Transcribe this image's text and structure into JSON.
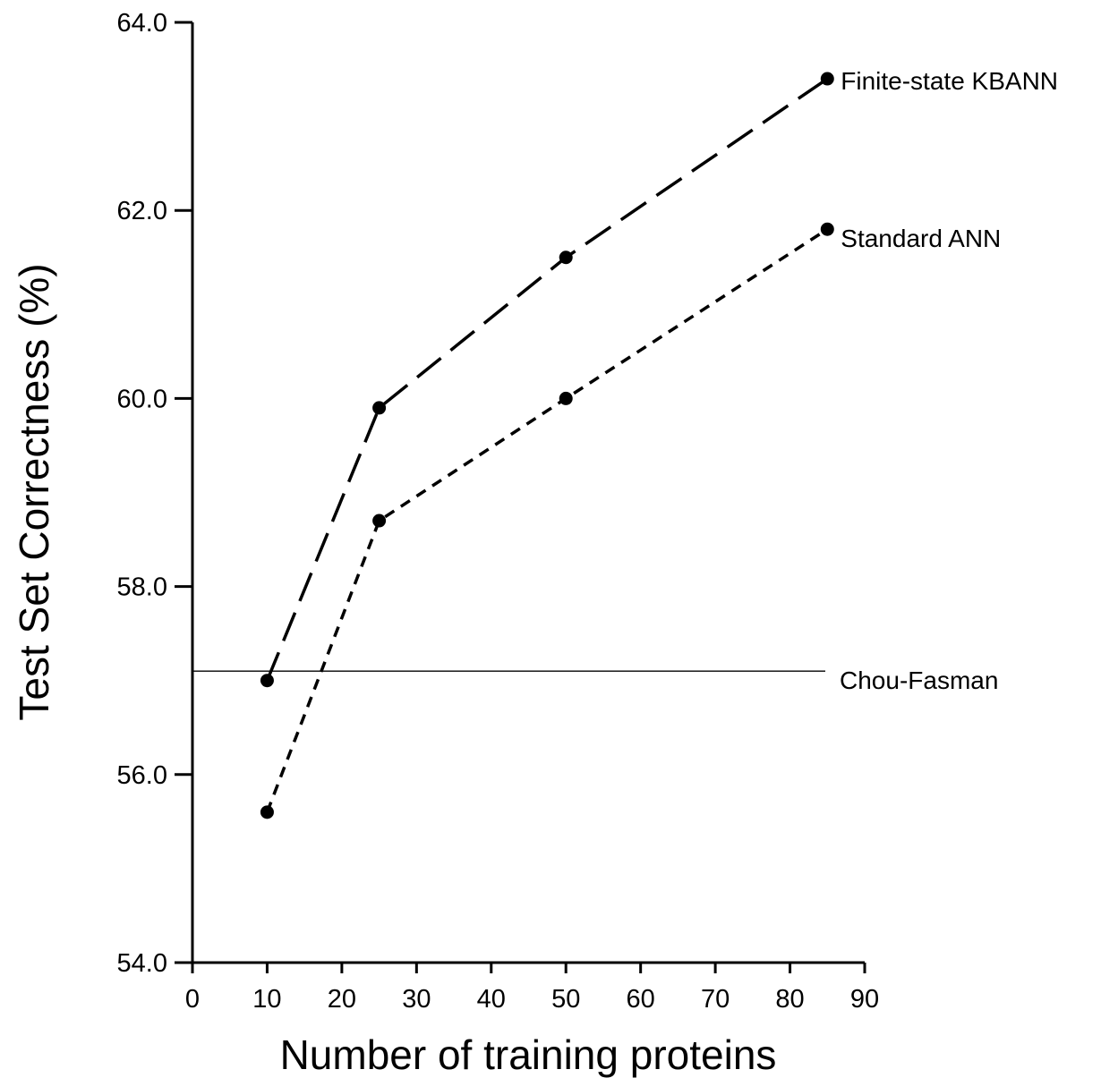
{
  "chart_data": {
    "type": "line",
    "xlabel": "Number of training proteins",
    "ylabel": "Test Set Correctness (%)",
    "xlim": [
      0,
      90
    ],
    "ylim": [
      54.0,
      64.0
    ],
    "x_ticks": [
      "0",
      "10",
      "20",
      "30",
      "40",
      "50",
      "60",
      "70",
      "80",
      "90"
    ],
    "y_ticks": [
      "54.0",
      "56.0",
      "58.0",
      "60.0",
      "62.0",
      "64.0"
    ],
    "grid": false,
    "legend": "none",
    "x": [
      10,
      25,
      50,
      85
    ],
    "series": [
      {
        "name": "Finite-state KBANN",
        "values": [
          57.0,
          59.9,
          61.5,
          63.4
        ],
        "line_style": "long-dashed",
        "color": "#000000"
      },
      {
        "name": "Standard ANN",
        "values": [
          55.6,
          58.7,
          60.0,
          61.8
        ],
        "line_style": "short-dashed",
        "color": "#000000"
      }
    ],
    "reference_lines": [
      {
        "name": "Chou-Fasman",
        "y": 57.1,
        "line_style": "solid",
        "color": "#000000"
      }
    ]
  }
}
